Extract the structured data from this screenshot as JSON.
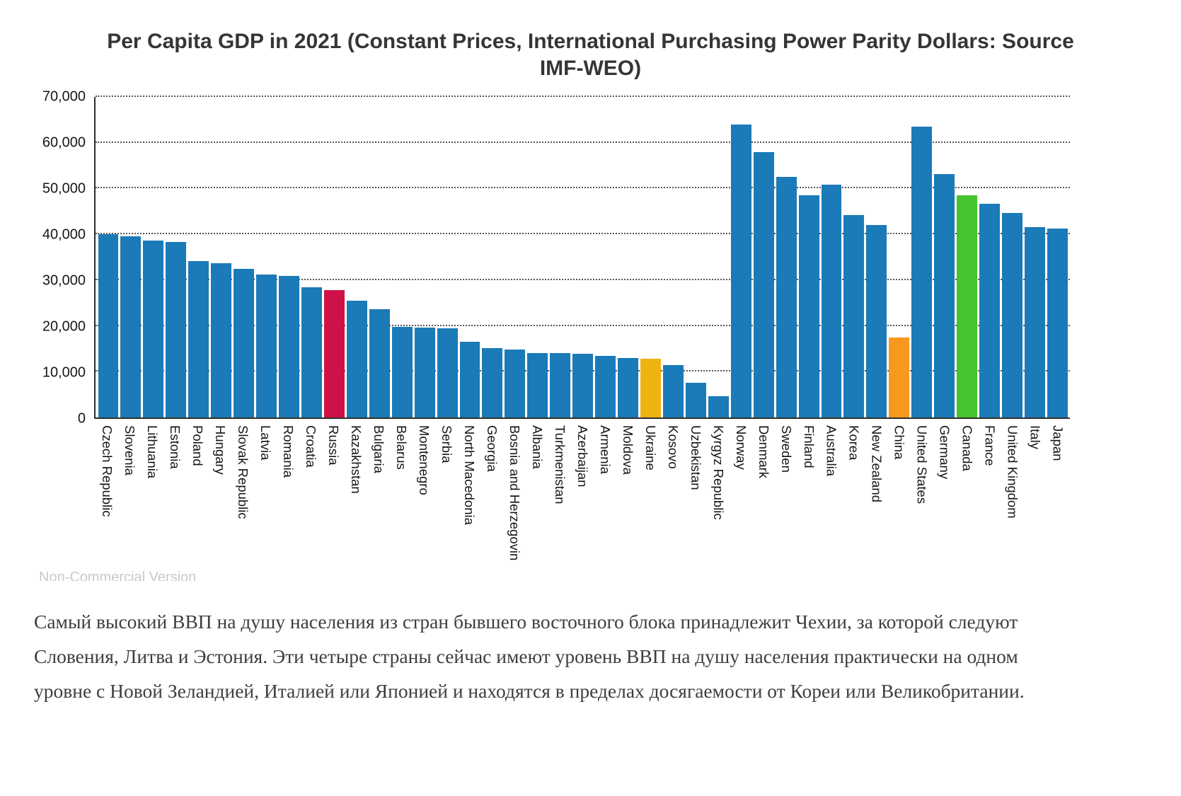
{
  "chart_data": {
    "type": "bar",
    "title": "Per Capita GDP in 2021 (Constant Prices, International Purchasing Power Parity Dollars: Source IMF-WEO)",
    "xlabel": "",
    "ylabel": "",
    "ylim": [
      0,
      70000
    ],
    "yticks": [
      0,
      10000,
      20000,
      30000,
      40000,
      50000,
      60000,
      70000
    ],
    "ytick_labels": [
      "0",
      "10,000",
      "20,000",
      "30,000",
      "40,000",
      "50,000",
      "60,000",
      "70,000"
    ],
    "grid": "horizontal-dotted",
    "legend": "none",
    "default_bar_color": "#1b7ab8",
    "highlight_colors": {
      "Russia": "#ce1249",
      "Ukraine": "#eeb211",
      "China": "#f8981d",
      "Canada": "#47c32f"
    },
    "categories": [
      "Czech Republic",
      "Slovenia",
      "Lithuania",
      "Estonia",
      "Poland",
      "Hungary",
      "Slovak Republic",
      "Latvia",
      "Romania",
      "Croatia",
      "Russia",
      "Kazakhstan",
      "Bulgaria",
      "Belarus",
      "Montenegro",
      "Serbia",
      "North Macedonia",
      "Georgia",
      "Bosnia and Herzegovin",
      "Albania",
      "Turkmenistan",
      "Azerbaijan",
      "Armenia",
      "Moldova",
      "Ukraine",
      "Kosovo",
      "Uzbekistan",
      "Kyrgyz Republic",
      "Norway",
      "Denmark",
      "Sweden",
      "Finland",
      "Australia",
      "Korea",
      "New Zealand",
      "China",
      "United States",
      "Germany",
      "Canada",
      "France",
      "United Kingdom",
      "Italy",
      "Japan"
    ],
    "values": [
      40100,
      39600,
      38600,
      38400,
      34100,
      33700,
      32400,
      31200,
      30900,
      28400,
      27800,
      25500,
      23600,
      19800,
      19600,
      19500,
      16500,
      15100,
      14800,
      14100,
      14000,
      13900,
      13400,
      13000,
      12900,
      11400,
      7600,
      4700,
      64000,
      58000,
      52500,
      48600,
      50800,
      44200,
      42000,
      17500,
      63500,
      53200,
      48600,
      46600,
      44700,
      41500,
      41200
    ]
  },
  "watermark": "Non-Commercial Version",
  "commentary": "Самый высокий ВВП на душу населения из стран бывшего восточного блока принадлежит Чехии, за которой следуют Словения, Литва и Эстония. Эти четыре страны сейчас имеют уровень ВВП на душу населения практически на одном уровне с Новой Зеландией, Италией или Японией и находятся в пределах досягаемости от Кореи или Великобритании."
}
